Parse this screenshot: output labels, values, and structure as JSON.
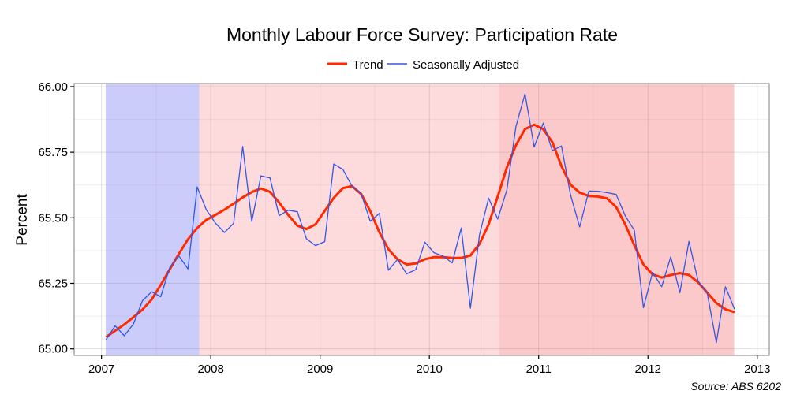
{
  "chart_data": {
    "type": "line",
    "title": "Monthly Labour Force Survey: Participation Rate",
    "xlabel": "",
    "ylabel": "Percent",
    "source": "Source: ABS 6202",
    "legend_position": "top",
    "grid": true,
    "xlim": [
      2006.75,
      2013.11
    ],
    "ylim": [
      64.975,
      66.012
    ],
    "x_ticks": [
      "2007",
      "2008",
      "2009",
      "2010",
      "2011",
      "2012",
      "2013"
    ],
    "y_ticks": [
      "65.00",
      "65.25",
      "65.50",
      "65.75",
      "66.00"
    ],
    "shaded_regions": [
      {
        "start": "2007-01-15",
        "end": "2007-11-24",
        "color": "#ccccfb"
      },
      {
        "start": "2007-11-24",
        "end": "2010-08-21",
        "color": "#fddadc"
      },
      {
        "start": "2010-08-21",
        "end": "2012-10-15",
        "color": "#fcc9cb"
      }
    ],
    "x": [
      "2007-01",
      "2007-02",
      "2007-03",
      "2007-04",
      "2007-05",
      "2007-06",
      "2007-07",
      "2007-08",
      "2007-09",
      "2007-10",
      "2007-11",
      "2007-12",
      "2008-01",
      "2008-02",
      "2008-03",
      "2008-04",
      "2008-05",
      "2008-06",
      "2008-07",
      "2008-08",
      "2008-09",
      "2008-10",
      "2008-11",
      "2008-12",
      "2009-01",
      "2009-02",
      "2009-03",
      "2009-04",
      "2009-05",
      "2009-06",
      "2009-07",
      "2009-08",
      "2009-09",
      "2009-10",
      "2009-11",
      "2009-12",
      "2010-01",
      "2010-02",
      "2010-03",
      "2010-04",
      "2010-05",
      "2010-06",
      "2010-07",
      "2010-08",
      "2010-09",
      "2010-10",
      "2010-11",
      "2010-12",
      "2011-01",
      "2011-02",
      "2011-03",
      "2011-04",
      "2011-05",
      "2011-06",
      "2011-07",
      "2011-08",
      "2011-09",
      "2011-10",
      "2011-11",
      "2011-12",
      "2012-01",
      "2012-02",
      "2012-03",
      "2012-04",
      "2012-05",
      "2012-06",
      "2012-07",
      "2012-08",
      "2012-09",
      "2012-10"
    ],
    "series": [
      {
        "name": "Trend",
        "color": "#ff2a00",
        "values": [
          65.045,
          65.069,
          65.093,
          65.121,
          65.15,
          65.188,
          65.244,
          65.304,
          65.363,
          65.418,
          65.461,
          65.492,
          65.511,
          65.531,
          65.554,
          65.578,
          65.598,
          65.612,
          65.599,
          65.558,
          65.511,
          65.47,
          65.457,
          65.475,
          65.526,
          65.576,
          65.613,
          65.621,
          65.591,
          65.526,
          65.445,
          65.38,
          65.342,
          65.322,
          65.326,
          65.342,
          65.35,
          65.35,
          65.347,
          65.347,
          65.356,
          65.4,
          65.475,
          65.581,
          65.692,
          65.777,
          65.838,
          65.855,
          65.838,
          65.788,
          65.697,
          65.626,
          65.596,
          65.583,
          65.581,
          65.574,
          65.541,
          65.475,
          65.395,
          65.322,
          65.284,
          65.272,
          65.282,
          65.289,
          65.282,
          65.254,
          65.215,
          65.175,
          65.151,
          65.14
        ]
      },
      {
        "name": "Seasonally Adjusted",
        "color": "#3355e6",
        "values": [
          65.035,
          65.088,
          65.05,
          65.095,
          65.184,
          65.218,
          65.199,
          65.312,
          65.354,
          65.305,
          65.618,
          65.531,
          65.48,
          65.444,
          65.479,
          65.772,
          65.486,
          65.66,
          65.652,
          65.508,
          65.529,
          65.523,
          65.42,
          65.394,
          65.409,
          65.705,
          65.684,
          65.621,
          65.593,
          65.487,
          65.517,
          65.3,
          65.341,
          65.286,
          65.302,
          65.407,
          65.367,
          65.354,
          65.328,
          65.461,
          65.155,
          65.435,
          65.575,
          65.495,
          65.606,
          65.848,
          65.973,
          65.77,
          65.861,
          65.756,
          65.774,
          65.586,
          65.465,
          65.602,
          65.601,
          65.596,
          65.589,
          65.508,
          65.452,
          65.157,
          65.292,
          65.237,
          65.351,
          65.215,
          65.41,
          65.259,
          65.214,
          65.024,
          65.237,
          65.151
        ]
      }
    ]
  }
}
